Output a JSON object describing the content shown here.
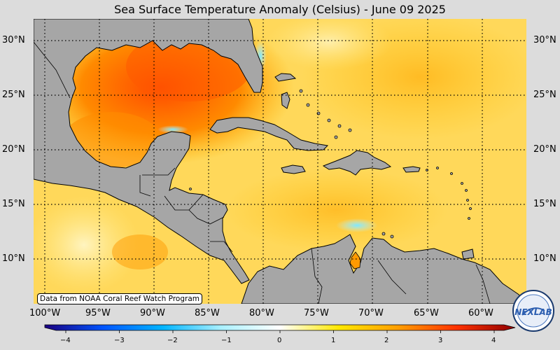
{
  "title": "Sea Surface Temperature Anomaly (Celsius) - June 09 2025",
  "credit": "Data from NOAA Coral Reef Watch Program",
  "logo_text": "NEXLAB",
  "lat_labels": [
    "30°N",
    "25°N",
    "20°N",
    "15°N",
    "10°N"
  ],
  "lon_labels": [
    "100°W",
    "95°W",
    "90°W",
    "85°W",
    "80°W",
    "75°W",
    "70°W",
    "65°W",
    "60°W"
  ],
  "colorbar": {
    "ticks": [
      "−4",
      "−3",
      "−2",
      "−1",
      "0",
      "1",
      "2",
      "3",
      "4"
    ],
    "min": -4,
    "max": 4,
    "stops": [
      "#1a0080",
      "#0055ff",
      "#00b4ff",
      "#aaf0ff",
      "#ffffff",
      "#ffe800",
      "#ff9f00",
      "#ff3200",
      "#900000"
    ]
  },
  "colors": {
    "land": "#a6a6a6",
    "ocean_base": "#ffd85a",
    "background": "#dcdcdc"
  }
}
